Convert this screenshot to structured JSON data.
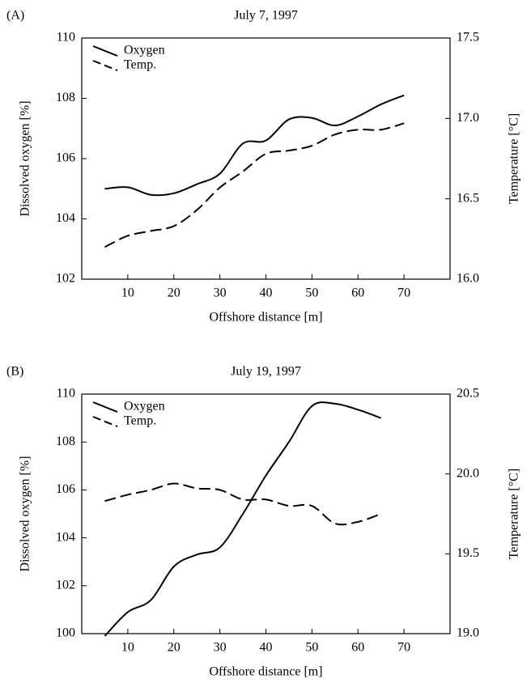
{
  "chart_data": [
    {
      "type": "line",
      "panel": "(A)",
      "title": "July 7, 1997",
      "x_label": "Offshore distance [m]",
      "y_label": "Dissolved oxygen [%]",
      "y2_label": "Temperature [°C]",
      "xlim": [
        0,
        80
      ],
      "xticks": [
        10,
        20,
        30,
        40,
        50,
        60,
        70
      ],
      "ylim": [
        102,
        110
      ],
      "yticks": [
        102,
        104,
        106,
        108,
        110
      ],
      "y2lim": [
        16.0,
        17.5
      ],
      "y2ticks": [
        {
          "value": 16.0,
          "label": "16.0"
        },
        16.5,
        {
          "value": 17.0,
          "label": "17.0"
        },
        17.5
      ],
      "legend": "upper left",
      "series": [
        {
          "name": "Oxygen",
          "color": "#000000",
          "linestyle": "solid",
          "x": [
            5,
            10,
            15,
            20,
            25,
            30,
            35,
            40,
            45,
            50,
            55,
            60,
            65,
            70
          ],
          "values": [
            105.0,
            105.05,
            104.8,
            104.85,
            105.15,
            105.5,
            106.5,
            106.6,
            107.3,
            107.35,
            107.1,
            107.4,
            107.8,
            108.1
          ]
        },
        {
          "name": "Temp.",
          "color": "#000000",
          "linestyle": "dashed",
          "axis": "y2",
          "x": [
            5,
            10,
            15,
            20,
            25,
            30,
            35,
            40,
            45,
            50,
            55,
            60,
            65,
            70
          ],
          "values": [
            16.2,
            16.27,
            16.3,
            16.33,
            16.43,
            16.57,
            16.67,
            16.78,
            16.8,
            16.83,
            16.9,
            16.93,
            16.93,
            16.97
          ]
        }
      ]
    },
    {
      "type": "line",
      "panel": "(B)",
      "title": "July 19, 1997",
      "x_label": "Offshore distance [m]",
      "y_label": "Dissolved oxygen [%]",
      "y2_label": "Temperature [°C]",
      "xlim": [
        0,
        80
      ],
      "xticks": [
        10,
        20,
        30,
        40,
        50,
        60,
        70
      ],
      "ylim": [
        100,
        110
      ],
      "yticks": [
        100,
        102,
        104,
        106,
        108,
        110
      ],
      "y2lim": [
        19.0,
        20.5
      ],
      "y2ticks": [
        {
          "value": 19.0,
          "label": "19.0"
        },
        19.5,
        {
          "value": 20.0,
          "label": "20.0"
        },
        20.5
      ],
      "legend": "upper left",
      "series": [
        {
          "name": "Oxygen",
          "color": "#000000",
          "linestyle": "solid",
          "x": [
            5,
            10,
            15,
            20,
            25,
            30,
            35,
            40,
            45,
            50,
            55,
            60,
            65
          ],
          "values": [
            99.9,
            100.9,
            101.4,
            102.8,
            103.3,
            103.6,
            105.0,
            106.6,
            108.0,
            109.5,
            109.6,
            109.35,
            109.0
          ]
        },
        {
          "name": "Temp.",
          "color": "#000000",
          "linestyle": "dashed",
          "axis": "y2",
          "x": [
            5,
            10,
            15,
            20,
            25,
            30,
            35,
            40,
            45,
            50,
            55,
            60,
            65
          ],
          "values": [
            19.83,
            19.87,
            19.9,
            19.94,
            19.91,
            19.9,
            19.84,
            19.84,
            19.8,
            19.8,
            19.69,
            19.7,
            19.75
          ]
        }
      ]
    }
  ]
}
